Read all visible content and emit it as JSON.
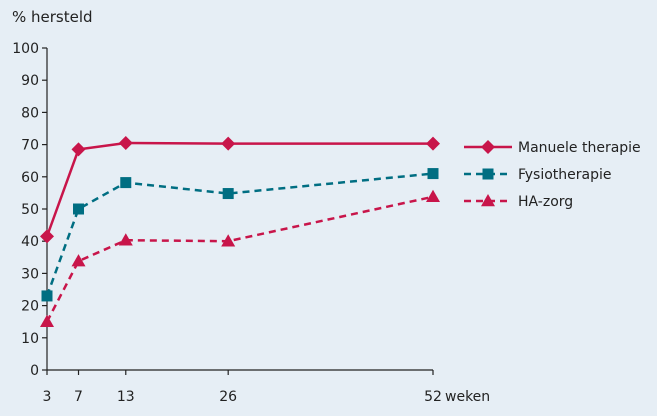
{
  "chart_data": {
    "type": "line",
    "ylabel": "% hersteld",
    "xlabel": "weken",
    "ylim": [
      0,
      100
    ],
    "y_ticks": [
      0,
      10,
      20,
      30,
      40,
      50,
      60,
      70,
      80,
      90,
      100
    ],
    "x_ticks": [
      3,
      7,
      13,
      26,
      52
    ],
    "x": [
      3,
      7,
      13,
      26,
      52
    ],
    "grid": false,
    "legend": "right",
    "series": [
      {
        "name": "Manuele therapie",
        "values": [
          41.5,
          68.5,
          70.5,
          70.3,
          70.3
        ],
        "color": "#c8154a",
        "dash": "solid",
        "marker": "diamond"
      },
      {
        "name": "Fysiotherapie",
        "values": [
          23,
          50,
          58.2,
          54.8,
          61
        ],
        "color": "#006e82",
        "dash": "dashed",
        "marker": "square"
      },
      {
        "name": "HA-zorg",
        "values": [
          15,
          33.8,
          40.3,
          40,
          53.8
        ],
        "color": "#c8154a",
        "dash": "dashed",
        "marker": "triangle"
      }
    ]
  }
}
